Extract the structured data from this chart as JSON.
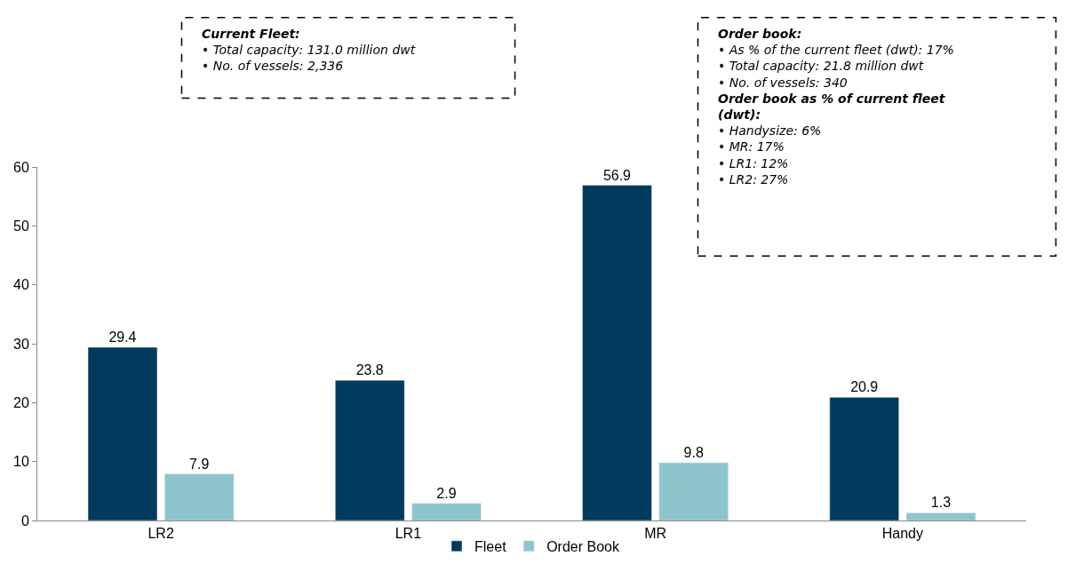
{
  "chart_data": {
    "type": "bar",
    "categories": [
      "LR2",
      "LR1",
      "MR",
      "Handy"
    ],
    "series": [
      {
        "name": "Fleet",
        "color": "#003a5c",
        "values": [
          29.4,
          23.8,
          56.9,
          20.9
        ]
      },
      {
        "name": "Order Book",
        "color": "#8fc4cc",
        "values": [
          7.9,
          2.9,
          9.8,
          1.3
        ]
      }
    ],
    "ylim": [
      0,
      60
    ],
    "yticks": [
      0,
      10,
      20,
      30,
      40,
      50,
      60
    ],
    "data_labels": true,
    "legend": "bottom",
    "annotations": [
      "Current Fleet:\n• Total capacity: 131.0 million dwt\n• No. of vessels: 2,336",
      "Order book:\n• As % of the current fleet (dwt): 17%\n• Total capacity: 21.8 million dwt\n• No. of vessels: 340\nOrder book as % of current fleet\n(dwt):\n• Handysize: 6%\n• MR: 17%\n• LR1: 12%\n• LR2: 27%"
    ]
  }
}
